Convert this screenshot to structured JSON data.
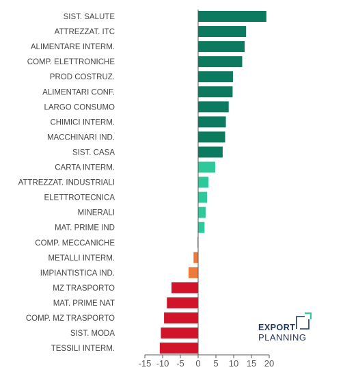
{
  "chart_data": {
    "type": "bar",
    "orientation": "horizontal",
    "title": "",
    "xlabel": "",
    "ylabel": "",
    "categories": [
      "SIST. SALUTE",
      "ATTREZZAT. ITC",
      "ALIMENTARE INTERM.",
      "COMP. ELETTRONICHE",
      "PROD COSTRUZ.",
      "ALIMENTARI CONF.",
      "LARGO CONSUMO",
      "CHIMICI INTERM.",
      "MACCHINARI IND.",
      "SIST. CASA",
      "CARTA INTERM.",
      "ATTREZZAT. INDUSTRIALI",
      "ELETTROTECNICA",
      "MINERALI",
      "MAT. PRIME IND",
      "COMP. MECCANICHE",
      "METALLI INTERM.",
      "IMPIANTISTICA IND.",
      "MZ TRASPORTO",
      "MAT. PRIME NAT",
      "COMP. MZ TRASPORTO",
      "SIST. MODA",
      "TESSILI INTERM."
    ],
    "values": [
      19.2,
      13.5,
      13.1,
      12.4,
      9.8,
      9.7,
      8.6,
      7.8,
      7.6,
      6.9,
      4.8,
      2.9,
      2.5,
      2.1,
      1.8,
      -0.2,
      -1.3,
      -2.7,
      -7.5,
      -8.8,
      -9.6,
      -10.5,
      -10.8
    ],
    "xlim": [
      -15,
      20
    ],
    "xticks": [
      -15,
      -10,
      -5,
      0,
      5,
      10,
      15,
      20
    ],
    "grid": false,
    "legend": "none",
    "colors": {
      "high": "#0c7a5f",
      "mid": "#2ec99a",
      "slight_negative": "#ee7a3c",
      "negative": "#d0152b",
      "axis": "#555555"
    }
  },
  "logo": {
    "line1": "EXPORT",
    "line2": "PLANNING"
  }
}
